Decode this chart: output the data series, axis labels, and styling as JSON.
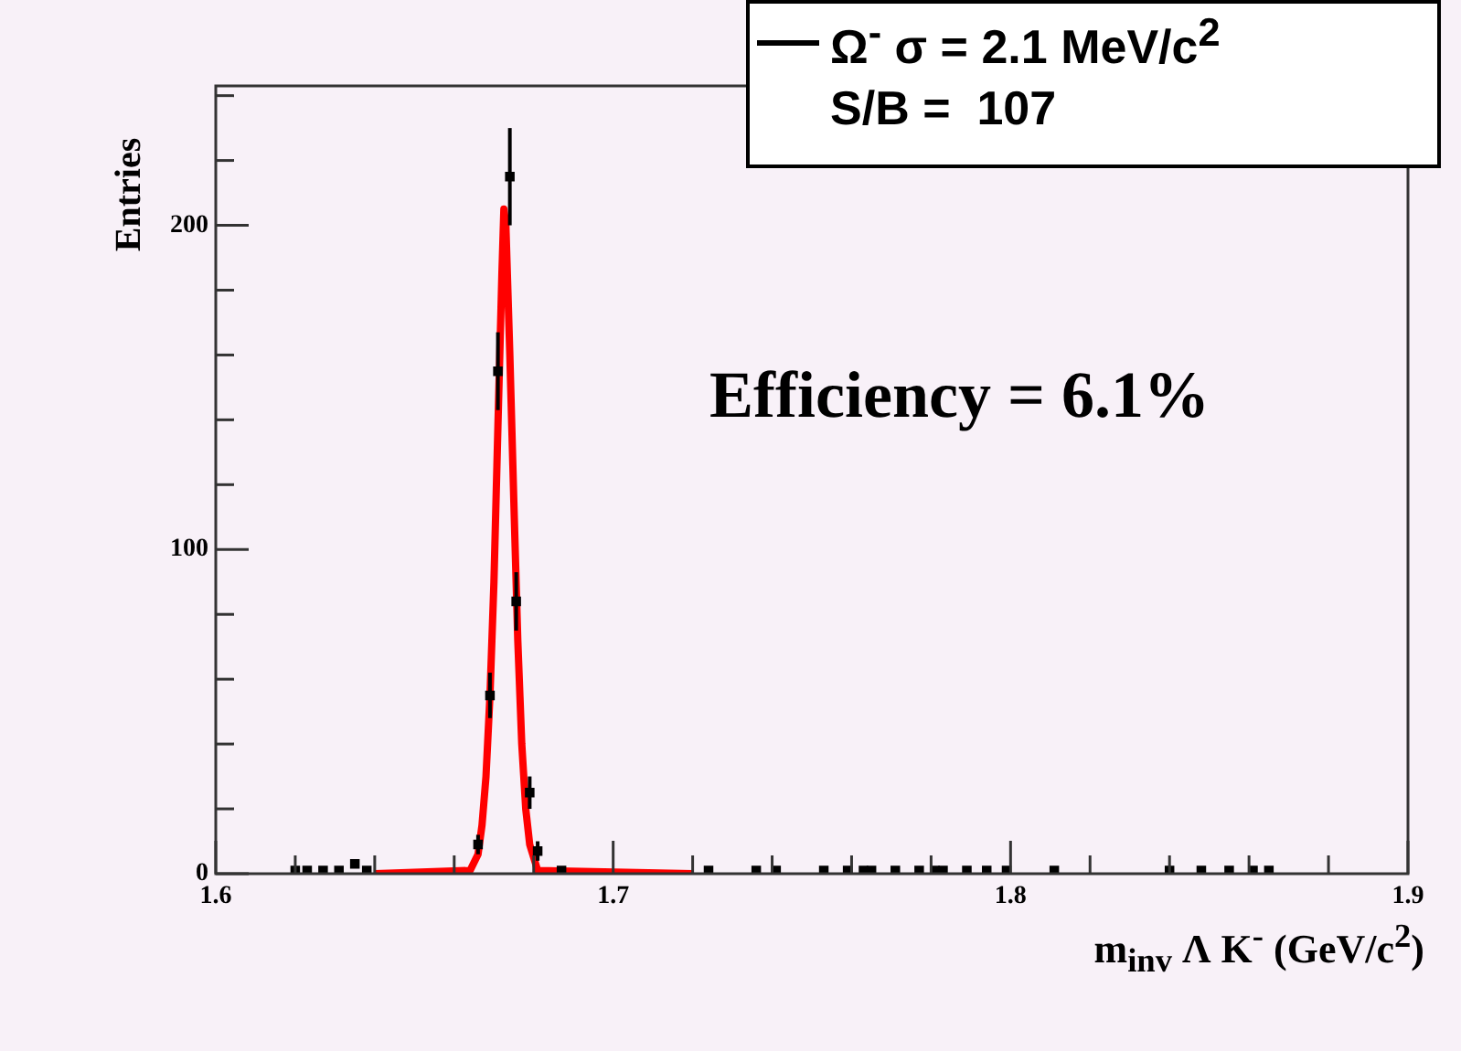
{
  "chart_data": {
    "type": "scatter",
    "ylabel": "Entries",
    "xlabel": "m$_{inv}$  Λ K$^{-}$ (GeV/c$^{2}$)",
    "annotations": [
      "S/B =  107",
      "Efficiency = 6.1%"
    ],
    "legend": "top right",
    "xlim": [
      1.6,
      1.9
    ],
    "ylim": [
      0,
      243
    ],
    "xticks": [
      1.6,
      {
        "value": 1.62,
        "label": null
      },
      {
        "value": 1.64,
        "label": null
      },
      {
        "value": 1.66,
        "label": null
      },
      {
        "value": 1.68,
        "label": null
      },
      1.7,
      {
        "value": 1.72,
        "label": null
      },
      {
        "value": 1.74,
        "label": null
      },
      {
        "value": 1.76,
        "label": null
      },
      {
        "value": 1.78,
        "label": null
      },
      1.8,
      {
        "value": 1.82,
        "label": null
      },
      {
        "value": 1.84,
        "label": null
      },
      {
        "value": 1.86,
        "label": null
      },
      {
        "value": 1.88,
        "label": null
      },
      1.9
    ],
    "yticks": [
      0,
      {
        "value": 20,
        "label": null
      },
      {
        "value": 40,
        "label": null
      },
      {
        "value": 60,
        "label": null
      },
      {
        "value": 80,
        "label": null
      },
      100,
      {
        "value": 120,
        "label": null
      },
      {
        "value": 140,
        "label": null
      },
      {
        "value": 160,
        "label": null
      },
      {
        "value": 180,
        "label": null
      },
      200,
      {
        "value": 220,
        "label": null
      },
      {
        "value": 240,
        "label": null
      }
    ],
    "series": [
      {
        "name": "Ω$^{-}$ σ = 2.1 MeV/c$^{2}$",
        "color": "#000000",
        "marker": "square",
        "x": [
          1.62,
          1.623,
          1.627,
          1.631,
          1.635,
          1.638,
          1.666,
          1.669,
          1.671,
          1.674,
          1.6756,
          1.679,
          1.681,
          1.687,
          1.724,
          1.736,
          1.741,
          1.753,
          1.759,
          1.763,
          1.765,
          1.771,
          1.777,
          1.781,
          1.783,
          1.789,
          1.794,
          1.799,
          1.811,
          1.84,
          1.848,
          1.855,
          1.861,
          1.865
        ],
        "values": [
          1,
          1,
          1,
          1,
          3,
          1,
          9,
          55,
          155,
          215,
          84,
          25,
          7,
          1,
          1,
          1,
          1,
          1,
          1,
          1,
          1,
          1,
          1,
          1,
          1,
          1,
          1,
          1,
          1,
          1,
          1,
          1,
          1,
          1
        ],
        "errors": [
          null,
          null,
          null,
          null,
          null,
          null,
          3,
          7,
          12,
          15,
          9,
          5,
          3,
          null,
          null,
          null,
          null,
          null,
          null,
          null,
          null,
          null,
          null,
          null,
          null,
          null,
          null,
          null,
          null,
          null,
          null,
          null,
          null,
          null
        ]
      },
      {
        "type": "line",
        "color": "#ff0000",
        "marker": "none",
        "x": [
          1.64,
          1.664,
          1.666,
          1.667,
          1.668,
          1.669,
          1.67,
          1.671,
          1.672,
          1.6725,
          1.673,
          1.674,
          1.675,
          1.676,
          1.677,
          1.678,
          1.679,
          1.681,
          1.72
        ],
        "values": [
          0,
          1,
          6,
          15,
          30,
          55,
          90,
          138,
          185,
          205,
          200,
          160,
          115,
          72,
          40,
          20,
          9,
          1,
          0
        ]
      }
    ]
  }
}
